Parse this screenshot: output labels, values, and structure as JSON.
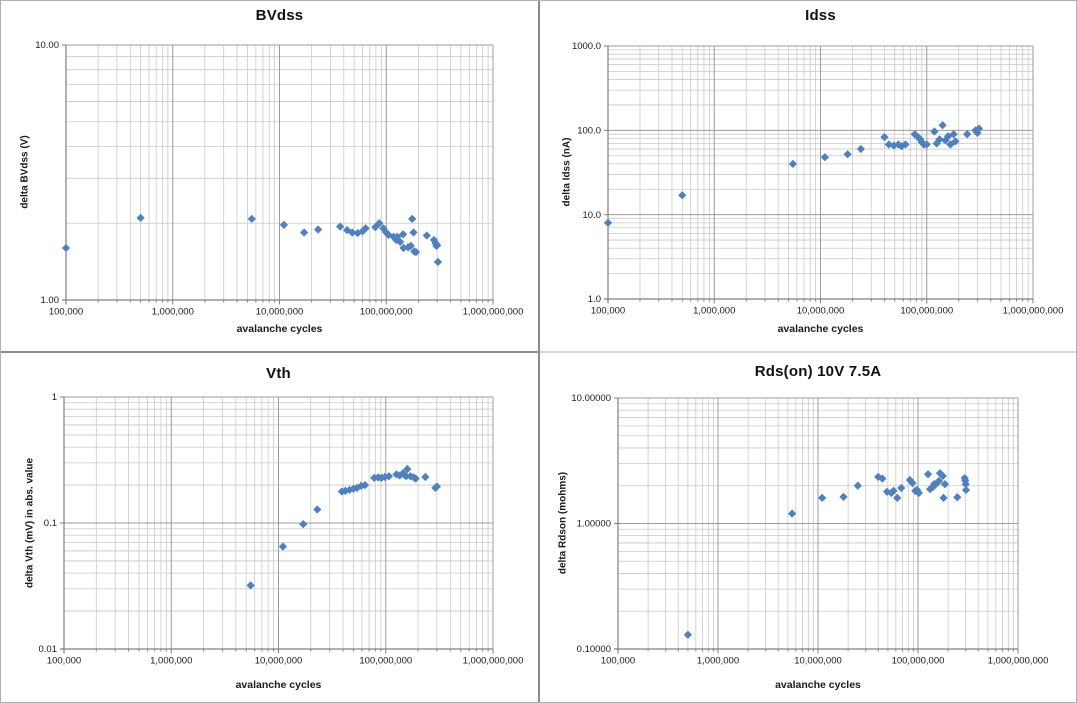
{
  "page": {
    "background": "#ffffff",
    "frame_color": "#b0b0b0",
    "divider_color_dark": "#8c8c8c",
    "divider_color_light": "#d9d9d9"
  },
  "style": {
    "marker_color": "#4f81bd",
    "major_gridline_color": "#9c9c9c",
    "minor_gridline_color": "#c9c9c9",
    "axis_line_color": "#7f7f7f",
    "tick_label_color": "#1a1a1a",
    "title_color": "#111111"
  },
  "x_axis": {
    "label": "avalanche cycles",
    "scale": "log",
    "range": [
      100000,
      1000000000
    ],
    "tick_labels": [
      "100,000",
      "1,000,000",
      "10,000,000",
      "100,000,000",
      "1,000,000,000"
    ],
    "tick_values": [
      100000,
      1000000,
      10000000,
      100000000,
      1000000000
    ]
  },
  "chart_data": [
    {
      "id": "bvdss",
      "type": "scatter",
      "title": "BVdss",
      "xlabel": "avalanche cycles",
      "ylabel": "delta BVdss (V)",
      "x_scale": "log",
      "y_scale": "log",
      "ylim": [
        1,
        10
      ],
      "y_ticks": [
        {
          "value": 10,
          "label": "10.00"
        },
        {
          "value": 1,
          "label": "1.00"
        }
      ],
      "x": [
        100000,
        500000,
        5500000,
        11000000,
        17000000,
        23000000,
        37000000,
        43000000,
        48000000,
        54000000,
        60000000,
        64000000,
        79000000,
        86000000,
        94000000,
        100000000,
        105000000,
        117000000,
        124000000,
        127000000,
        135000000,
        144000000,
        145000000,
        160000000,
        170000000,
        175000000,
        180000000,
        183000000,
        190000000,
        240000000,
        280000000,
        290000000,
        295000000,
        300000000,
        305000000
      ],
      "y": [
        1.6,
        2.1,
        2.08,
        1.97,
        1.84,
        1.89,
        1.94,
        1.88,
        1.84,
        1.83,
        1.86,
        1.91,
        1.93,
        2.0,
        1.91,
        1.84,
        1.8,
        1.77,
        1.72,
        1.77,
        1.69,
        1.81,
        1.6,
        1.61,
        1.63,
        2.08,
        1.84,
        1.55,
        1.54,
        1.79,
        1.72,
        1.67,
        1.63,
        1.64,
        1.41
      ]
    },
    {
      "id": "idss",
      "type": "scatter",
      "title": "Idss",
      "xlabel": "avalanche cycles",
      "ylabel": "delta Idss (nA)",
      "x_scale": "log",
      "y_scale": "log",
      "ylim": [
        1,
        1000
      ],
      "y_ticks": [
        {
          "value": 1000,
          "label": "1000.0"
        },
        {
          "value": 100,
          "label": "100.0"
        },
        {
          "value": 10,
          "label": "10.0"
        },
        {
          "value": 1,
          "label": "1.0"
        }
      ],
      "x": [
        100000,
        500000,
        5500000,
        11000000,
        18000000,
        24000000,
        40000000,
        44000000,
        49000000,
        54000000,
        58000000,
        63000000,
        77000000,
        83000000,
        87000000,
        90000000,
        94000000,
        100000000,
        118000000,
        124000000,
        132000000,
        141000000,
        150000000,
        159000000,
        167000000,
        179000000,
        186000000,
        240000000,
        288000000,
        300000000,
        310000000
      ],
      "y": [
        8,
        17,
        40,
        48,
        52,
        60,
        83,
        68,
        66,
        68,
        65,
        68,
        90,
        83,
        78,
        72,
        68,
        68,
        97,
        70,
        78,
        115,
        76,
        85,
        68,
        90,
        74,
        90,
        100,
        93,
        105
      ]
    },
    {
      "id": "vth",
      "type": "scatter",
      "title": "Vth",
      "xlabel": "avalanche cycles",
      "ylabel": "delta Vth (mV) in abs. value",
      "x_scale": "log",
      "y_scale": "log",
      "ylim": [
        0.01,
        1
      ],
      "y_ticks": [
        {
          "value": 1,
          "label": "1"
        },
        {
          "value": 0.1,
          "label": "0.1"
        },
        {
          "value": 0.01,
          "label": "0.01"
        }
      ],
      "x": [
        5500000,
        11000000,
        17000000,
        23000000,
        39000000,
        42000000,
        46000000,
        50000000,
        54000000,
        59000000,
        64000000,
        78000000,
        85000000,
        91000000,
        98000000,
        107000000,
        126000000,
        135000000,
        145000000,
        150000000,
        155000000,
        159000000,
        170000000,
        182000000,
        190000000,
        234000000,
        290000000,
        300000000
      ],
      "y": [
        0.032,
        0.065,
        0.098,
        0.128,
        0.178,
        0.18,
        0.183,
        0.187,
        0.19,
        0.197,
        0.2,
        0.228,
        0.23,
        0.228,
        0.232,
        0.235,
        0.243,
        0.238,
        0.248,
        0.24,
        0.235,
        0.268,
        0.235,
        0.23,
        0.225,
        0.232,
        0.19,
        0.195
      ]
    },
    {
      "id": "rdson",
      "type": "scatter",
      "title": "Rds(on) 10V 7.5A",
      "xlabel": "avalanche cycles",
      "ylabel": "delta Rdson (mohms)",
      "x_scale": "log",
      "y_scale": "log",
      "ylim": [
        0.1,
        10
      ],
      "y_ticks": [
        {
          "value": 10,
          "label": "10.00000"
        },
        {
          "value": 1,
          "label": "1.00000"
        },
        {
          "value": 0.1,
          "label": "0.10000"
        }
      ],
      "x": [
        500000,
        5500000,
        11000000,
        18000000,
        25000000,
        40000000,
        44000000,
        49000000,
        54000000,
        57000000,
        62000000,
        68000000,
        83000000,
        88000000,
        94000000,
        98000000,
        102000000,
        126000000,
        132000000,
        141000000,
        145000000,
        155000000,
        162000000,
        166000000,
        177000000,
        180000000,
        186000000,
        247000000,
        293000000,
        297000000,
        300000000,
        302000000
      ],
      "y": [
        0.13,
        1.2,
        1.6,
        1.63,
        2.0,
        2.35,
        2.28,
        1.79,
        1.75,
        1.82,
        1.6,
        1.92,
        2.22,
        2.1,
        1.82,
        1.85,
        1.75,
        2.47,
        1.88,
        1.95,
        2.06,
        2.1,
        2.18,
        2.52,
        2.39,
        1.6,
        2.06,
        1.62,
        2.3,
        2.2,
        2.06,
        1.85
      ]
    }
  ]
}
